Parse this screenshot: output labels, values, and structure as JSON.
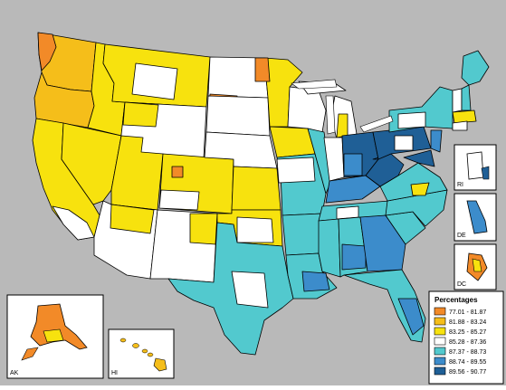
{
  "legend": {
    "title": "Percentages",
    "entries": [
      {
        "label": "77.01 - 81.87",
        "color": "#F28A28"
      },
      {
        "label": "81.88 - 83.24",
        "color": "#F5BE1A"
      },
      {
        "label": "83.25 - 85.27",
        "color": "#F7E20E"
      },
      {
        "label": "85.28 - 87.36",
        "color": "#FFFFFF"
      },
      {
        "label": "87.37 - 88.73",
        "color": "#52C9CE"
      },
      {
        "label": "88.74 - 89.55",
        "color": "#3C8CCB"
      },
      {
        "label": "89.56 - 90.77",
        "color": "#1F5F96"
      }
    ]
  },
  "insets": {
    "alaska": "AK",
    "hawaii": "HI",
    "rhode_island": "RI",
    "delaware": "DE",
    "dc": "DC"
  },
  "colors": {
    "background": "#B9B9B9",
    "ocean": "#FFFFFF",
    "border": "#000000"
  }
}
